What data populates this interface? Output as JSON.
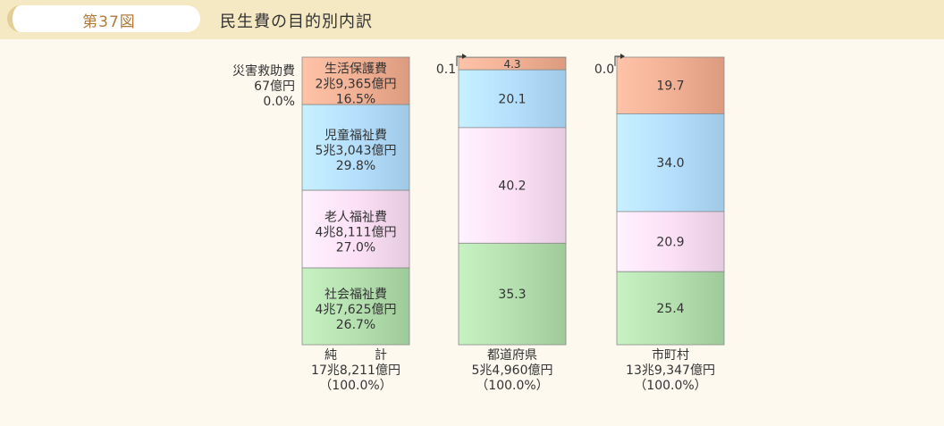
{
  "header": {
    "figure_number": "第37図",
    "title": "民生費の目的別内訳"
  },
  "colors": {
    "生活保護費": "#e6a589",
    "児童福祉費": "#a9d3f0",
    "老人福祉費": "#f0d4ea",
    "社会福祉費": "#a9d4a4",
    "災害救助費": "#f5d5c0"
  },
  "chart_data": {
    "type": "bar",
    "stacked": true,
    "percent": true,
    "ylim": [
      0,
      100
    ],
    "categories": [
      "純　　　計",
      "都道府県",
      "市町村"
    ],
    "totals": [
      "17兆8,211億円",
      "5兆4,960億円",
      "13兆9,347億円"
    ],
    "total_percent": "（100.0%）",
    "series": [
      {
        "name": "災害救助費",
        "values": [
          0.0,
          0.1,
          0.0
        ],
        "labels": [
          "",
          "0.1",
          "0.0"
        ],
        "amount": "67億円",
        "percent_label": "0.0%"
      },
      {
        "name": "生活保護費",
        "values": [
          16.5,
          4.3,
          19.7
        ],
        "labels": [
          "",
          "4.3",
          "19.7"
        ],
        "amount": "2兆9,365億円",
        "percent_label": "16.5%"
      },
      {
        "name": "児童福祉費",
        "values": [
          29.8,
          20.1,
          34.0
        ],
        "labels": [
          "",
          "20.1",
          "34.0"
        ],
        "amount": "5兆3,043億円",
        "percent_label": "29.8%"
      },
      {
        "name": "老人福祉費",
        "values": [
          27.0,
          40.2,
          20.9
        ],
        "labels": [
          "",
          "40.2",
          "20.9"
        ],
        "amount": "4兆8,111億円",
        "percent_label": "27.0%"
      },
      {
        "name": "社会福祉費",
        "values": [
          26.7,
          35.3,
          25.4
        ],
        "labels": [
          "",
          "35.3",
          "25.4"
        ],
        "amount": "4兆7,625億円",
        "percent_label": "26.7%"
      }
    ]
  }
}
